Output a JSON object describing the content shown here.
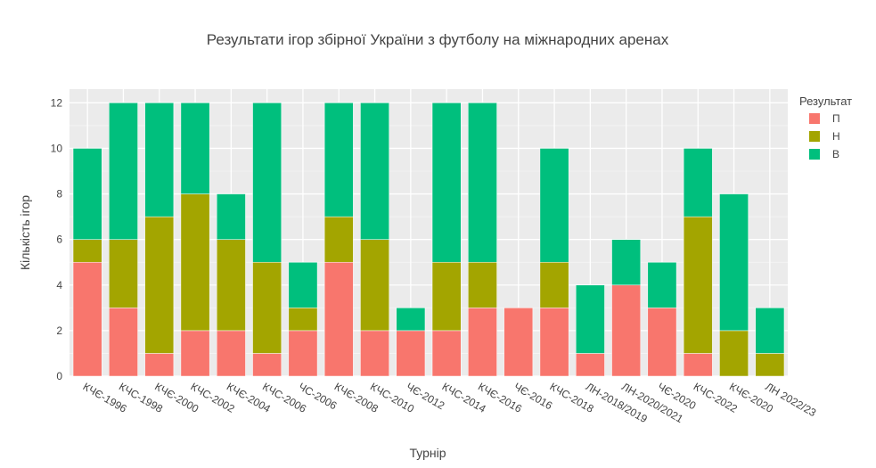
{
  "chart_data": {
    "type": "bar",
    "stacked": true,
    "title": "Результати ігор збірної України з футболу на міжнародних аренах",
    "xlabel": "Турнір",
    "ylabel": "Кількість ігор",
    "ylim": [
      0,
      12.6
    ],
    "yticks": [
      0,
      2,
      4,
      6,
      8,
      10,
      12
    ],
    "grid": true,
    "legend_title": "Результат",
    "legend_position": "right",
    "categories": [
      "КЧЄ-1996",
      "КЧС-1998",
      "КЧЄ-2000",
      "КЧС-2002",
      "КЧЄ-2004",
      "КЧС-2006",
      "ЧС-2006",
      "КЧЄ-2008",
      "КЧС-2010",
      "ЧЄ-2012",
      "КЧС-2014",
      "КЧЄ-2016",
      "ЧЄ-2016",
      "КЧС-2018",
      "ЛН-2018/2019",
      "ЛН-2020/2021",
      "ЧЄ-2020",
      "КЧС-2022",
      "КЧЄ-2020",
      "ЛН 2022/23"
    ],
    "series": [
      {
        "name": "П",
        "color": "#F8766D",
        "values": [
          5,
          3,
          1,
          2,
          2,
          1,
          2,
          5,
          2,
          2,
          2,
          3,
          3,
          3,
          1,
          4,
          3,
          1,
          0,
          0
        ]
      },
      {
        "name": "Н",
        "color": "#A3A500",
        "values": [
          1,
          3,
          6,
          6,
          4,
          4,
          1,
          2,
          4,
          0,
          3,
          2,
          0,
          2,
          0,
          0,
          0,
          6,
          2,
          1
        ]
      },
      {
        "name": "В",
        "color": "#00BF7D",
        "values": [
          4,
          6,
          5,
          4,
          2,
          7,
          2,
          5,
          6,
          1,
          7,
          7,
          0,
          5,
          3,
          2,
          2,
          3,
          6,
          2
        ]
      }
    ]
  }
}
